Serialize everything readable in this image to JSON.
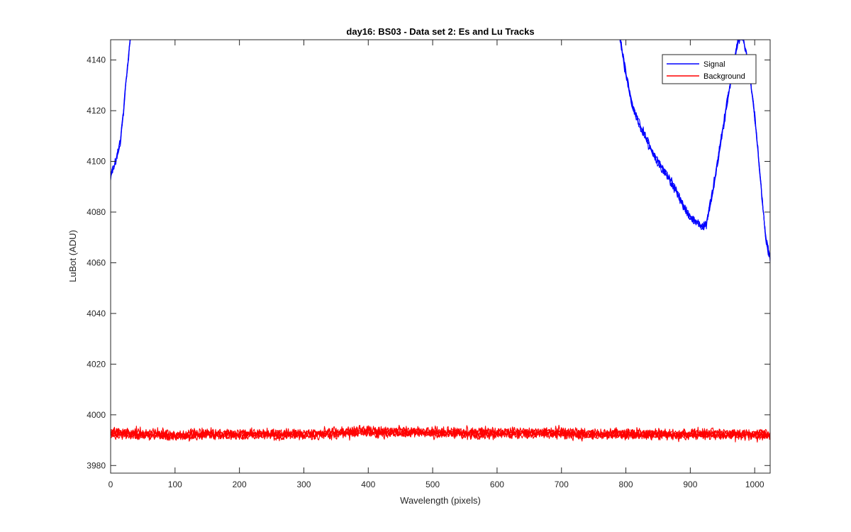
{
  "chart_data": {
    "type": "line",
    "title": "day16: BS03 - Data set 2: Es and Lu Tracks",
    "xlabel": "Wavelength (pixels)",
    "ylabel": "LuBot (ADU)",
    "xlim": [
      0,
      1024
    ],
    "ylim": [
      3977,
      4148
    ],
    "xticks": [
      0,
      100,
      200,
      300,
      400,
      500,
      600,
      700,
      800,
      900,
      1000
    ],
    "yticks": [
      3980,
      4000,
      4020,
      4040,
      4060,
      4080,
      4100,
      4120,
      4140
    ],
    "grid": false,
    "legend_position": "top-right",
    "series": [
      {
        "name": "Signal",
        "color": "#0000ff",
        "x": [
          0,
          5,
          10,
          15,
          20,
          24,
          28,
          31,
          790,
          800,
          810,
          820,
          830,
          840,
          850,
          860,
          870,
          880,
          890,
          900,
          910,
          920,
          925,
          930,
          940,
          950,
          960,
          970,
          975,
          980,
          985,
          990,
          1000,
          1010,
          1017,
          1024
        ],
        "y": [
          4094,
          4098,
          4102,
          4108,
          4120,
          4132,
          4142,
          4150,
          4150,
          4135,
          4122,
          4115,
          4110,
          4104,
          4100,
          4096,
          4092,
          4088,
          4082,
          4078,
          4076,
          4074,
          4076,
          4082,
          4096,
          4112,
          4128,
          4142,
          4149,
          4150,
          4145,
          4140,
          4118,
          4090,
          4070,
          4062
        ]
      },
      {
        "name": "Background",
        "color": "#ff0000",
        "x": [
          0,
          50,
          100,
          150,
          200,
          250,
          300,
          350,
          400,
          450,
          500,
          550,
          600,
          650,
          700,
          750,
          800,
          850,
          900,
          950,
          1000,
          1024
        ],
        "y": [
          3993,
          3992.5,
          3992,
          3992.5,
          3992.5,
          3992.5,
          3992.5,
          3993,
          3993.5,
          3993.5,
          3993,
          3993,
          3993,
          3993,
          3993,
          3992.5,
          3992.5,
          3992.5,
          3992.5,
          3992.5,
          3992.5,
          3992.5
        ]
      }
    ]
  }
}
